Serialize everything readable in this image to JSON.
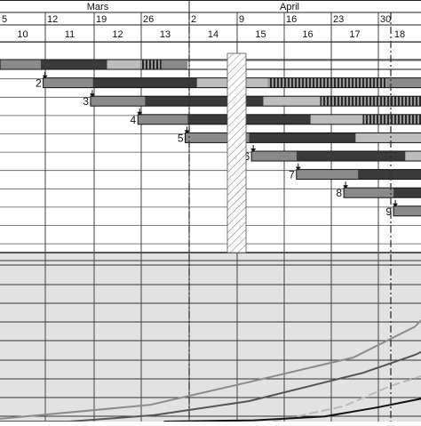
{
  "months": [
    {
      "name": "mars-label",
      "label": "Mars"
    },
    {
      "name": "april-label",
      "label": "April"
    }
  ],
  "dates": [
    "5",
    "12",
    "19",
    "26",
    "2",
    "9",
    "16",
    "23",
    "30"
  ],
  "weeks": [
    "10",
    "11",
    "12",
    "13",
    "14",
    "15",
    "16",
    "17",
    "18"
  ],
  "tasks": [
    {
      "id": "1",
      "label": "",
      "start": 0,
      "end": 4,
      "segments": [
        [
          0,
          0.9,
          "#8a8a8a"
        ],
        [
          0.9,
          2.3,
          "#3a3a3a"
        ],
        [
          2.3,
          3.0,
          "#bdbdbd"
        ],
        [
          3.0,
          3.45,
          "hatch"
        ],
        [
          3.45,
          4,
          "#8a8a8a"
        ]
      ]
    },
    {
      "id": "2",
      "label": "2",
      "start": 0.95,
      "end": 9.5,
      "segments": [
        [
          0.95,
          2.0,
          "#8a8a8a"
        ],
        [
          2.0,
          4.2,
          "#3a3a3a"
        ],
        [
          4.2,
          5.7,
          "#bdbdbd"
        ],
        [
          5.7,
          8.2,
          "hatch"
        ],
        [
          8.2,
          9.5,
          "#8a8a8a"
        ]
      ]
    },
    {
      "id": "3",
      "label": "3",
      "start": 1.95,
      "end": 9.5,
      "segments": [
        [
          1.95,
          3.1,
          "#8a8a8a"
        ],
        [
          3.1,
          5.6,
          "#3a3a3a"
        ],
        [
          5.6,
          6.8,
          "#bdbdbd"
        ],
        [
          6.8,
          9.5,
          "hatch"
        ]
      ]
    },
    {
      "id": "4",
      "label": "4",
      "start": 2.95,
      "end": 9.5,
      "segments": [
        [
          2.95,
          4.0,
          "#8a8a8a"
        ],
        [
          4.0,
          6.6,
          "#3a3a3a"
        ],
        [
          6.6,
          7.7,
          "#bdbdbd"
        ],
        [
          7.7,
          9.5,
          "hatch"
        ]
      ]
    },
    {
      "id": "5",
      "label": "5",
      "start": 3.95,
      "end": 9.5,
      "segments": [
        [
          3.95,
          5.3,
          "#8a8a8a"
        ],
        [
          5.3,
          7.55,
          "#3a3a3a"
        ],
        [
          7.55,
          9.5,
          "#bdbdbd"
        ]
      ]
    },
    {
      "id": "6",
      "label": "6",
      "start": 5.35,
      "end": 9.5,
      "segments": [
        [
          5.35,
          6.3,
          "#8a8a8a"
        ],
        [
          6.3,
          8.6,
          "#3a3a3a"
        ],
        [
          8.6,
          9.5,
          "#bdbdbd"
        ]
      ]
    },
    {
      "id": "7",
      "label": "7",
      "start": 6.3,
      "end": 9.5,
      "segments": [
        [
          6.3,
          7.6,
          "#8a8a8a"
        ],
        [
          7.6,
          9.5,
          "#3a3a3a"
        ]
      ]
    },
    {
      "id": "8",
      "label": "8",
      "start": 7.3,
      "end": 9.5,
      "segments": [
        [
          7.3,
          8.35,
          "#8a8a8a"
        ],
        [
          8.35,
          9.5,
          "#3a3a3a"
        ]
      ]
    },
    {
      "id": "9",
      "label": "9",
      "start": 8.35,
      "end": 9.5,
      "segments": [
        [
          8.35,
          9.5,
          "#8a8a8a"
        ]
      ]
    }
  ],
  "lines": [
    {
      "name": "light-gray-line",
      "color": "#8c8c8c",
      "points": [
        [
          0,
          0.02
        ],
        [
          3.2,
          0.13
        ],
        [
          5.2,
          0.3
        ],
        [
          7.5,
          0.5
        ],
        [
          8.8,
          0.74
        ],
        [
          9.5,
          1.0
        ]
      ]
    },
    {
      "name": "dark-gray-line",
      "color": "#555555",
      "points": [
        [
          0,
          0.0
        ],
        [
          1.5,
          0.0
        ],
        [
          3.3,
          0.05
        ],
        [
          5.3,
          0.16
        ],
        [
          7.7,
          0.38
        ],
        [
          8.8,
          0.52
        ],
        [
          9.5,
          0.64
        ]
      ]
    },
    {
      "name": "dashed-line",
      "color": "#bbbbbb",
      "dashed": true,
      "points": [
        [
          5.8,
          0.0
        ],
        [
          7.3,
          0.12
        ],
        [
          8.3,
          0.28
        ],
        [
          9.5,
          0.42
        ]
      ]
    },
    {
      "name": "black-line",
      "color": "#111111",
      "points": [
        [
          3.5,
          0.0
        ],
        [
          5.4,
          0.01
        ],
        [
          6.9,
          0.04
        ],
        [
          8.0,
          0.11
        ],
        [
          9.5,
          0.22
        ]
      ]
    }
  ],
  "colors": {
    "panel": "#e2e2e2",
    "grid": "#444444",
    "holiday": "#ffffff"
  }
}
